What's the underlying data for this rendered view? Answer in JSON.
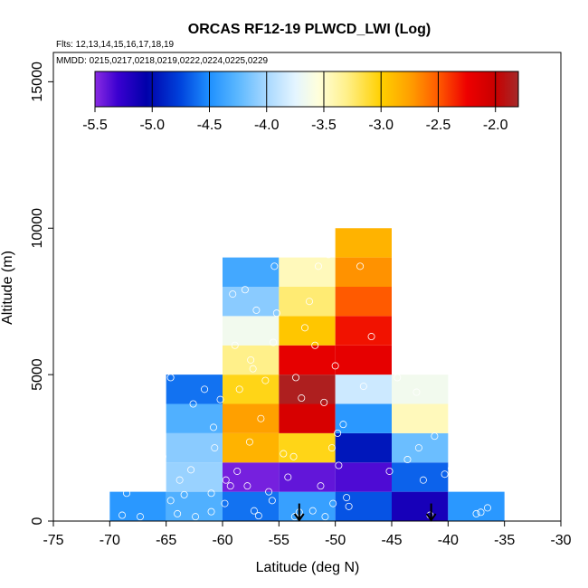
{
  "chart_data": {
    "type": "heatmap",
    "title": "ORCAS RF12-19 PLWCD_LWI (Log)",
    "flights_label": "Flts: 12,13,14,15,16,17,18,19",
    "dates_label": "MMDD: 0215,0217,0218,0219,0222,0224,0225,0229",
    "xlabel": "Latitude (deg N)",
    "ylabel": "Altitude (m)",
    "xlim": [
      -75,
      -30
    ],
    "ylim": [
      0,
      16000
    ],
    "x_ticks": [
      -75,
      -70,
      -65,
      -60,
      -55,
      -50,
      -45,
      -40,
      -35,
      -30
    ],
    "y_ticks": [
      0,
      5000,
      10000,
      15000
    ],
    "colorbar": {
      "min": -5.5,
      "max": -1.8,
      "ticks": [
        -5.5,
        -5.0,
        -4.5,
        -4.0,
        -3.5,
        -3.0,
        -2.5,
        -2.0
      ],
      "tick_labels": [
        "-5.5",
        "-5.0",
        "-4.5",
        "-4.0",
        "-3.5",
        "-3.0",
        "-2.5",
        "-2.0"
      ],
      "stops": [
        {
          "v": -5.5,
          "color": "#8a2be2"
        },
        {
          "v": -5.3,
          "color": "#3a00d0"
        },
        {
          "v": -5.05,
          "color": "#0000aa"
        },
        {
          "v": -4.75,
          "color": "#0044dd"
        },
        {
          "v": -4.5,
          "color": "#1e90ff"
        },
        {
          "v": -4.25,
          "color": "#5cb8ff"
        },
        {
          "v": -4.0,
          "color": "#a8d8ff"
        },
        {
          "v": -3.75,
          "color": "#e4f5ff"
        },
        {
          "v": -3.55,
          "color": "#ffffdc"
        },
        {
          "v": -3.3,
          "color": "#fff08a"
        },
        {
          "v": -3.0,
          "color": "#ffd000"
        },
        {
          "v": -2.75,
          "color": "#ffa000"
        },
        {
          "v": -2.5,
          "color": "#ff5a00"
        },
        {
          "v": -2.25,
          "color": "#ee0000"
        },
        {
          "v": -2.0,
          "color": "#c80000"
        },
        {
          "v": -1.8,
          "color": "#a52a2a"
        }
      ]
    },
    "cells": [
      {
        "x0": -70,
        "x1": -65,
        "y0": 0,
        "y1": 1000,
        "value": -4.45
      },
      {
        "x0": -65,
        "x1": -60,
        "y0": 0,
        "y1": 1000,
        "value": -4.3
      },
      {
        "x0": -60,
        "x1": -55,
        "y0": 0,
        "y1": 1000,
        "value": -4.6
      },
      {
        "x0": -55,
        "x1": -50,
        "y0": 0,
        "y1": 1000,
        "value": -4.4
      },
      {
        "x0": -50,
        "x1": -45,
        "y0": 0,
        "y1": 1000,
        "value": -4.7
      },
      {
        "x0": -45,
        "x1": -40,
        "y0": 0,
        "y1": 1000,
        "value": -5.15
      },
      {
        "x0": -40,
        "x1": -35,
        "y0": 0,
        "y1": 1000,
        "value": -4.45
      },
      {
        "x0": -65,
        "x1": -60,
        "y0": 1000,
        "y1": 2000,
        "value": -4.05
      },
      {
        "x0": -60,
        "x1": -55,
        "y0": 1000,
        "y1": 2000,
        "value": -5.45
      },
      {
        "x0": -55,
        "x1": -50,
        "y0": 1000,
        "y1": 2000,
        "value": -5.4
      },
      {
        "x0": -50,
        "x1": -45,
        "y0": 1000,
        "y1": 2000,
        "value": -5.35
      },
      {
        "x0": -45,
        "x1": -40,
        "y0": 1000,
        "y1": 2000,
        "value": -4.65
      },
      {
        "x0": -65,
        "x1": -60,
        "y0": 2000,
        "y1": 3000,
        "value": -4.1
      },
      {
        "x0": -60,
        "x1": -55,
        "y0": 2000,
        "y1": 3000,
        "value": -2.85
      },
      {
        "x0": -55,
        "x1": -50,
        "y0": 2000,
        "y1": 3000,
        "value": -3.05
      },
      {
        "x0": -50,
        "x1": -45,
        "y0": 2000,
        "y1": 3000,
        "value": -4.95
      },
      {
        "x0": -45,
        "x1": -40,
        "y0": 2000,
        "y1": 3000,
        "value": -4.2
      },
      {
        "x0": -65,
        "x1": -60,
        "y0": 3000,
        "y1": 4000,
        "value": -4.3
      },
      {
        "x0": -60,
        "x1": -55,
        "y0": 3000,
        "y1": 4000,
        "value": -2.75
      },
      {
        "x0": -55,
        "x1": -50,
        "y0": 3000,
        "y1": 4000,
        "value": -2.1
      },
      {
        "x0": -50,
        "x1": -45,
        "y0": 3000,
        "y1": 4000,
        "value": -4.45
      },
      {
        "x0": -45,
        "x1": -40,
        "y0": 3000,
        "y1": 4000,
        "value": -3.45
      },
      {
        "x0": -65,
        "x1": -60,
        "y0": 4000,
        "y1": 5000,
        "value": -4.6
      },
      {
        "x0": -60,
        "x1": -55,
        "y0": 4000,
        "y1": 5000,
        "value": -3.05
      },
      {
        "x0": -55,
        "x1": -50,
        "y0": 4000,
        "y1": 5000,
        "value": -1.85
      },
      {
        "x0": -50,
        "x1": -45,
        "y0": 4000,
        "y1": 5000,
        "value": -3.85
      },
      {
        "x0": -45,
        "x1": -40,
        "y0": 4000,
        "y1": 5000,
        "value": -3.65
      },
      {
        "x0": -60,
        "x1": -55,
        "y0": 5000,
        "y1": 6000,
        "value": -3.3
      },
      {
        "x0": -55,
        "x1": -50,
        "y0": 5000,
        "y1": 6000,
        "value": -2.2
      },
      {
        "x0": -50,
        "x1": -45,
        "y0": 5000,
        "y1": 6000,
        "value": -2.2
      },
      {
        "x0": -60,
        "x1": -55,
        "y0": 6000,
        "y1": 7000,
        "value": -3.65
      },
      {
        "x0": -55,
        "x1": -50,
        "y0": 6000,
        "y1": 7000,
        "value": -2.95
      },
      {
        "x0": -50,
        "x1": -45,
        "y0": 6000,
        "y1": 7000,
        "value": -2.3
      },
      {
        "x0": -60,
        "x1": -55,
        "y0": 7000,
        "y1": 8000,
        "value": -4.1
      },
      {
        "x0": -55,
        "x1": -50,
        "y0": 7000,
        "y1": 8000,
        "value": -3.25
      },
      {
        "x0": -50,
        "x1": -45,
        "y0": 7000,
        "y1": 8000,
        "value": -2.5
      },
      {
        "x0": -60,
        "x1": -55,
        "y0": 8000,
        "y1": 9000,
        "value": -4.35
      },
      {
        "x0": -55,
        "x1": -50,
        "y0": 8000,
        "y1": 9000,
        "value": -3.45
      },
      {
        "x0": -50,
        "x1": -45,
        "y0": 8000,
        "y1": 9000,
        "value": -2.7
      },
      {
        "x0": -50,
        "x1": -45,
        "y0": 9000,
        "y1": 10000,
        "value": -2.85
      }
    ],
    "samples": [
      [
        -68.9,
        200
      ],
      [
        -68.5,
        950
      ],
      [
        -67.3,
        150
      ],
      [
        -65.3,
        2200
      ],
      [
        -64.6,
        700
      ],
      [
        -64.6,
        4900
      ],
      [
        -63.8,
        1400
      ],
      [
        -64.0,
        250
      ],
      [
        -63.4,
        900
      ],
      [
        -62.8,
        1750
      ],
      [
        -62.4,
        150
      ],
      [
        -62.6,
        4000
      ],
      [
        -61.6,
        4500
      ],
      [
        -61.0,
        950
      ],
      [
        -61.0,
        320
      ],
      [
        -60.7,
        2500
      ],
      [
        -60.8,
        3200
      ],
      [
        -60.2,
        4150
      ],
      [
        -59.7,
        1400
      ],
      [
        -59.3,
        1200
      ],
      [
        -59.1,
        7750
      ],
      [
        -58.7,
        1700
      ],
      [
        -58.9,
        6000
      ],
      [
        -58.5,
        4500
      ],
      [
        -58.0,
        7900
      ],
      [
        -57.8,
        1200
      ],
      [
        -57.6,
        2700
      ],
      [
        -57.5,
        5500
      ],
      [
        -57.3,
        5200
      ],
      [
        -57.0,
        7200
      ],
      [
        -56.6,
        3500
      ],
      [
        -56.2,
        4800
      ],
      [
        -55.9,
        1000
      ],
      [
        -55.6,
        700
      ],
      [
        -55.4,
        8700
      ],
      [
        -55.2,
        7100
      ],
      [
        -55.5,
        6100
      ],
      [
        -54.6,
        2300
      ],
      [
        -54.2,
        1500
      ],
      [
        -53.7,
        2200
      ],
      [
        -53.5,
        4900
      ],
      [
        -53.2,
        300
      ],
      [
        -53.0,
        4200
      ],
      [
        -52.7,
        6600
      ],
      [
        -52.3,
        7500
      ],
      [
        -51.8,
        6000
      ],
      [
        -51.5,
        8700
      ],
      [
        -51.3,
        1200
      ],
      [
        -51.0,
        4050
      ],
      [
        -50.6,
        9100
      ],
      [
        -50.3,
        2500
      ],
      [
        -50.2,
        600
      ],
      [
        -50.0,
        5300
      ],
      [
        -49.8,
        3000
      ],
      [
        -49.7,
        1900
      ],
      [
        -49.3,
        3300
      ],
      [
        -49.0,
        800
      ],
      [
        -48.8,
        500
      ],
      [
        -47.8,
        8700
      ],
      [
        -47.5,
        4600
      ],
      [
        -46.8,
        6300
      ],
      [
        -45.2,
        1700
      ],
      [
        -44.5,
        4900
      ],
      [
        -43.6,
        2100
      ],
      [
        -42.8,
        4400
      ],
      [
        -42.6,
        2500
      ],
      [
        -42.2,
        1400
      ],
      [
        -41.6,
        200
      ],
      [
        -41.2,
        2900
      ],
      [
        -40.3,
        1600
      ],
      [
        -39.7,
        1800
      ],
      [
        -37.5,
        250
      ],
      [
        -37.1,
        300
      ],
      [
        -36.5,
        450
      ],
      [
        -53.6,
        150
      ],
      [
        -52.0,
        350
      ],
      [
        -50.9,
        150
      ],
      [
        -59.8,
        600
      ],
      [
        -57.2,
        350
      ],
      [
        -56.8,
        180
      ]
    ],
    "arrows": [
      {
        "x": -53.2,
        "y_top": 600,
        "y_bottom": 0
      },
      {
        "x": -41.5,
        "y_top": 600,
        "y_bottom": 0
      }
    ]
  }
}
